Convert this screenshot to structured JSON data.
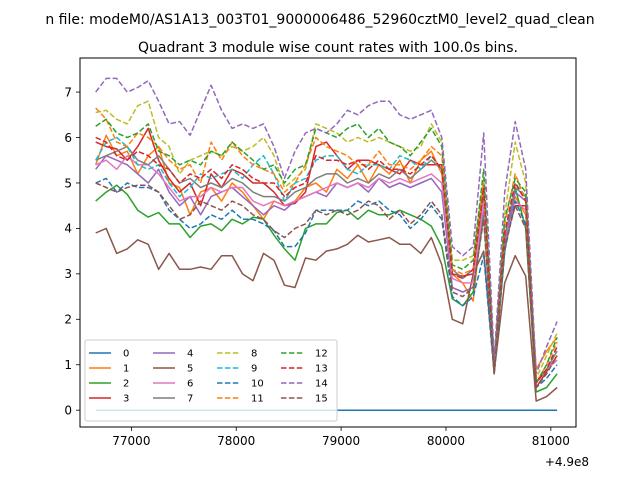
{
  "figure": {
    "suptitle": "n file: modeM0/AS1A13_003T01_9000006486_52960cztM0_level2_quad_clean",
    "title": "Quadrant 3 module wise count rates with 100.0s bins."
  },
  "chart_data": {
    "type": "line",
    "title": "Quadrant 3 module wise count rates with 100.0s bins.",
    "xlabel": "",
    "ylabel": "",
    "x_offset_label": "+4.9e8",
    "xlim": [
      76510,
      81240
    ],
    "ylim": [
      -0.37,
      7.75
    ],
    "xticks": [
      77000,
      78000,
      79000,
      80000,
      81000
    ],
    "xtick_labels": [
      "77000",
      "78000",
      "79000",
      "80000",
      "81000"
    ],
    "yticks": [
      0,
      1,
      2,
      3,
      4,
      5,
      6,
      7
    ],
    "ytick_labels": [
      "0",
      "1",
      "2",
      "3",
      "4",
      "5",
      "6",
      "7"
    ],
    "grid": false,
    "legend": {
      "placement": "lower-left",
      "columns": 4
    },
    "x": [
      76660,
      76760,
      76860,
      76960,
      77060,
      77160,
      77260,
      77360,
      77460,
      77560,
      77660,
      77760,
      77860,
      77960,
      78060,
      78160,
      78260,
      78360,
      78460,
      78560,
      78660,
      78760,
      78860,
      78960,
      79060,
      79160,
      79260,
      79360,
      79460,
      79560,
      79660,
      79760,
      79860,
      79960,
      80060,
      80160,
      80260,
      80360,
      80460,
      80560,
      80660,
      80760,
      80860,
      80960,
      81060
    ],
    "series": [
      {
        "name": "0",
        "color": "#1f77b4",
        "dash": "solid",
        "values": [
          0,
          0,
          0,
          0,
          0,
          0,
          0,
          0,
          0,
          0,
          0,
          0,
          0,
          0,
          0,
          0,
          0,
          0,
          0,
          0,
          0,
          0,
          0,
          0,
          0,
          0,
          0,
          0,
          0,
          0,
          0,
          0,
          0,
          0,
          0,
          0,
          0,
          0,
          0,
          0,
          0,
          0,
          0,
          0,
          0
        ]
      },
      {
        "name": "1",
        "color": "#ff7f0e",
        "dash": "solid",
        "values": [
          5.4,
          6.05,
          5.6,
          5.7,
          5.2,
          5.6,
          5.8,
          5.0,
          4.9,
          4.3,
          4.8,
          4.9,
          4.6,
          5.0,
          4.8,
          4.5,
          4.2,
          4.6,
          4.5,
          4.6,
          4.9,
          5.0,
          4.8,
          5.3,
          5.1,
          5.4,
          5.0,
          5.4,
          5.2,
          5.5,
          5.0,
          5.5,
          5.7,
          5.2,
          3.0,
          2.8,
          2.4,
          4.6,
          0.9,
          3.5,
          4.7,
          4.3,
          0.9,
          1.3,
          1.6
        ]
      },
      {
        "name": "2",
        "color": "#2ca02c",
        "dash": "solid",
        "values": [
          4.6,
          4.8,
          4.95,
          4.75,
          4.4,
          4.25,
          4.35,
          4.1,
          4.1,
          3.8,
          4.05,
          4.1,
          3.95,
          4.2,
          4.1,
          4.25,
          4.2,
          3.85,
          3.55,
          3.3,
          4.0,
          4.1,
          4.1,
          4.35,
          4.4,
          4.2,
          4.4,
          4.3,
          4.3,
          4.4,
          4.3,
          4.2,
          4.05,
          3.6,
          2.45,
          2.3,
          2.6,
          4.3,
          0.8,
          3.5,
          4.9,
          4.0,
          0.4,
          0.5,
          0.8
        ]
      },
      {
        "name": "3",
        "color": "#d62728",
        "dash": "solid",
        "values": [
          5.9,
          5.8,
          5.75,
          5.5,
          5.8,
          6.2,
          5.5,
          5.1,
          4.8,
          5.0,
          4.5,
          5.2,
          4.9,
          5.3,
          5.2,
          5.0,
          5.0,
          4.8,
          4.5,
          4.55,
          4.8,
          5.8,
          5.9,
          5.6,
          5.3,
          5.5,
          5.5,
          5.4,
          5.3,
          5.2,
          5.5,
          5.4,
          5.4,
          5.4,
          3.0,
          2.95,
          3.0,
          4.8,
          0.85,
          3.7,
          4.5,
          4.5,
          0.5,
          0.85,
          1.2
        ]
      },
      {
        "name": "4",
        "color": "#9467bd",
        "dash": "solid",
        "values": [
          5.3,
          5.6,
          5.5,
          5.4,
          5.2,
          5.0,
          5.3,
          4.8,
          4.5,
          4.7,
          4.3,
          4.7,
          4.8,
          4.9,
          4.7,
          4.5,
          4.3,
          4.5,
          4.4,
          4.6,
          4.7,
          4.8,
          4.7,
          5.0,
          4.9,
          5.0,
          4.8,
          5.1,
          4.9,
          5.0,
          4.9,
          5.0,
          5.1,
          4.8,
          2.7,
          2.6,
          2.7,
          4.5,
          0.9,
          3.6,
          4.8,
          4.6,
          0.6,
          0.9,
          1.1
        ]
      },
      {
        "name": "5",
        "color": "#8c564b",
        "dash": "solid",
        "values": [
          3.9,
          4.0,
          3.45,
          3.55,
          3.75,
          3.65,
          3.1,
          3.45,
          3.1,
          3.1,
          3.15,
          3.1,
          3.4,
          3.4,
          3.0,
          2.85,
          3.45,
          3.3,
          2.75,
          2.7,
          3.35,
          3.3,
          3.5,
          3.55,
          3.65,
          3.85,
          3.7,
          3.75,
          3.8,
          3.65,
          3.65,
          3.45,
          3.8,
          3.2,
          2.0,
          1.9,
          3.0,
          3.5,
          0.85,
          2.8,
          3.4,
          2.95,
          0.2,
          0.3,
          0.5
        ]
      },
      {
        "name": "6",
        "color": "#e377c2",
        "dash": "solid",
        "values": [
          5.4,
          5.5,
          5.3,
          5.6,
          5.4,
          5.4,
          5.2,
          4.9,
          4.6,
          4.7,
          4.7,
          4.9,
          4.8,
          4.9,
          4.9,
          4.6,
          4.5,
          4.6,
          4.5,
          4.6,
          4.7,
          4.8,
          4.9,
          5.0,
          4.9,
          5.0,
          4.9,
          5.1,
          5.0,
          5.1,
          5.0,
          5.1,
          5.2,
          5.0,
          2.9,
          2.8,
          2.8,
          4.6,
          0.9,
          3.6,
          4.6,
          4.4,
          0.6,
          0.9,
          1.1
        ]
      },
      {
        "name": "7",
        "color": "#7f7f7f",
        "dash": "solid",
        "values": [
          5.5,
          5.6,
          5.7,
          5.8,
          5.5,
          5.4,
          5.6,
          5.3,
          5.0,
          5.1,
          4.9,
          5.0,
          4.9,
          5.1,
          5.0,
          4.8,
          4.7,
          4.7,
          4.6,
          4.8,
          4.9,
          5.1,
          5.2,
          5.2,
          5.0,
          5.1,
          5.0,
          5.2,
          5.1,
          5.3,
          5.1,
          5.3,
          5.5,
          5.3,
          3.1,
          2.9,
          3.1,
          4.9,
          0.9,
          3.8,
          4.9,
          4.7,
          0.6,
          0.9,
          1.3
        ]
      },
      {
        "name": "8",
        "color": "#bcbd22",
        "dash": "dashed",
        "values": [
          6.55,
          6.6,
          6.4,
          6.3,
          6.7,
          6.8,
          6.0,
          5.8,
          5.2,
          5.5,
          5.6,
          5.7,
          5.6,
          5.8,
          5.7,
          5.8,
          6.0,
          5.6,
          4.9,
          5.1,
          5.3,
          6.3,
          6.2,
          6.1,
          5.9,
          6.0,
          5.9,
          6.0,
          5.9,
          5.8,
          5.7,
          5.8,
          6.3,
          5.9,
          3.3,
          3.3,
          3.4,
          5.1,
          1.0,
          4.3,
          5.9,
          5.0,
          0.7,
          1.2,
          1.7
        ]
      },
      {
        "name": "9",
        "color": "#17becf",
        "dash": "dashed",
        "values": [
          5.5,
          5.9,
          6.0,
          5.8,
          5.4,
          5.3,
          5.4,
          5.0,
          4.7,
          4.9,
          5.2,
          5.1,
          5.2,
          5.3,
          5.1,
          5.4,
          5.6,
          5.2,
          4.6,
          5.0,
          5.1,
          5.5,
          5.6,
          5.6,
          5.3,
          5.2,
          5.4,
          5.4,
          5.3,
          5.6,
          5.5,
          5.3,
          5.6,
          5.3,
          3.0,
          2.9,
          3.1,
          4.9,
          0.9,
          3.9,
          5.0,
          4.7,
          0.6,
          0.9,
          1.4
        ]
      },
      {
        "name": "10",
        "color": "#1f77b4",
        "dash": "dashed",
        "values": [
          5.0,
          5.1,
          4.8,
          5.0,
          4.9,
          4.9,
          4.8,
          4.4,
          4.2,
          4.0,
          4.1,
          4.3,
          4.2,
          4.4,
          4.2,
          4.2,
          4.1,
          3.95,
          3.6,
          3.6,
          3.9,
          4.4,
          4.4,
          4.4,
          4.4,
          4.6,
          4.5,
          4.6,
          4.4,
          4.3,
          4.0,
          4.2,
          4.5,
          4.2,
          2.5,
          2.3,
          2.5,
          3.4,
          0.8,
          3.5,
          4.6,
          4.1,
          0.5,
          0.7,
          1.0
        ]
      },
      {
        "name": "11",
        "color": "#ff7f0e",
        "dash": "dashed",
        "values": [
          6.65,
          6.4,
          5.9,
          5.8,
          6.1,
          6.0,
          5.8,
          5.5,
          5.3,
          5.4,
          5.0,
          5.9,
          5.5,
          5.9,
          5.6,
          5.4,
          5.3,
          5.2,
          4.8,
          5.0,
          5.4,
          6.0,
          5.8,
          5.7,
          5.6,
          5.4,
          5.4,
          5.7,
          5.4,
          5.4,
          5.3,
          5.5,
          5.8,
          5.6,
          3.1,
          3.0,
          3.1,
          5.0,
          0.9,
          4.1,
          5.2,
          4.6,
          0.6,
          1.0,
          1.5
        ]
      },
      {
        "name": "12",
        "color": "#2ca02c",
        "dash": "dashed",
        "values": [
          6.25,
          6.4,
          6.1,
          6.0,
          6.1,
          6.3,
          5.7,
          5.6,
          5.4,
          5.5,
          5.4,
          5.7,
          5.6,
          5.9,
          5.7,
          5.5,
          5.3,
          5.4,
          5.0,
          5.3,
          5.4,
          6.2,
          6.1,
          6.0,
          6.2,
          6.3,
          6.0,
          6.2,
          5.9,
          5.8,
          5.6,
          5.9,
          6.2,
          5.8,
          3.2,
          3.1,
          3.3,
          5.3,
          1.0,
          4.2,
          5.1,
          4.8,
          0.6,
          1.0,
          1.6
        ]
      },
      {
        "name": "13",
        "color": "#d62728",
        "dash": "dashed",
        "values": [
          6.0,
          5.9,
          5.6,
          5.5,
          5.7,
          5.6,
          5.4,
          5.3,
          5.0,
          5.2,
          5.1,
          5.3,
          5.1,
          5.4,
          5.3,
          5.1,
          5.0,
          5.0,
          4.7,
          4.9,
          5.0,
          5.6,
          5.5,
          5.5,
          5.4,
          5.5,
          5.3,
          5.5,
          5.3,
          5.3,
          5.2,
          5.4,
          5.6,
          5.3,
          3.0,
          2.9,
          3.1,
          4.9,
          0.9,
          3.9,
          5.0,
          4.6,
          0.6,
          0.9,
          1.4
        ]
      },
      {
        "name": "14",
        "color": "#9467bd",
        "dash": "dashed",
        "values": [
          7.0,
          7.3,
          7.3,
          7.0,
          7.1,
          7.25,
          6.8,
          6.3,
          6.35,
          6.05,
          6.6,
          7.15,
          6.6,
          6.2,
          6.3,
          6.2,
          6.3,
          5.8,
          5.1,
          5.7,
          6.1,
          6.2,
          6.1,
          6.3,
          6.6,
          6.5,
          6.7,
          6.8,
          6.8,
          6.5,
          6.4,
          6.5,
          6.6,
          6.0,
          3.6,
          3.4,
          3.6,
          6.1,
          1.1,
          4.8,
          6.35,
          5.3,
          0.8,
          1.4,
          1.95
        ]
      },
      {
        "name": "15",
        "color": "#8c564b",
        "dash": "dashed",
        "values": [
          5.0,
          4.9,
          4.8,
          4.9,
          4.95,
          4.95,
          4.8,
          4.5,
          4.2,
          4.3,
          4.6,
          4.5,
          4.4,
          4.6,
          4.5,
          4.3,
          4.2,
          3.95,
          3.8,
          4.0,
          4.1,
          4.4,
          4.3,
          4.4,
          4.3,
          4.4,
          4.6,
          4.5,
          4.2,
          4.4,
          4.1,
          4.3,
          4.6,
          4.3,
          2.6,
          2.5,
          2.7,
          4.2,
          0.8,
          3.6,
          4.5,
          4.0,
          0.5,
          0.8,
          1.2
        ]
      }
    ]
  }
}
